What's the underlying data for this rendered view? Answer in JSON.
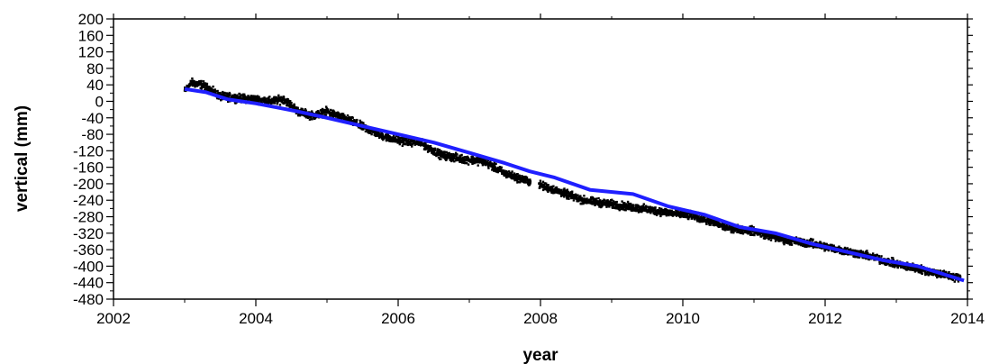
{
  "chart_data": {
    "type": "scatter",
    "title": "",
    "xlabel": "year",
    "ylabel": "vertical (mm)",
    "xlim": [
      2002,
      2014
    ],
    "ylim": [
      -480,
      200
    ],
    "x_ticks": [
      2002,
      2004,
      2006,
      2008,
      2010,
      2012,
      2014
    ],
    "y_ticks": [
      200,
      160,
      120,
      80,
      40,
      0,
      -40,
      -80,
      -120,
      -160,
      -200,
      -240,
      -280,
      -320,
      -360,
      -400,
      -440,
      -480
    ],
    "grid": false,
    "legend": "none",
    "series": [
      {
        "kind": "scatter",
        "color": "#000000",
        "marker": "square",
        "anchors": [
          [
            2003.0,
            25
          ],
          [
            2003.1,
            45
          ],
          [
            2003.25,
            40
          ],
          [
            2003.5,
            12
          ],
          [
            2003.75,
            8
          ],
          [
            2004.0,
            5
          ],
          [
            2004.2,
            0
          ],
          [
            2004.4,
            5
          ],
          [
            2004.6,
            -25
          ],
          [
            2004.8,
            -35
          ],
          [
            2005.0,
            -25
          ],
          [
            2005.3,
            -45
          ],
          [
            2005.6,
            -70
          ],
          [
            2005.8,
            -85
          ],
          [
            2006.0,
            -95
          ],
          [
            2006.3,
            -100
          ],
          [
            2006.6,
            -130
          ],
          [
            2006.9,
            -140
          ],
          [
            2007.2,
            -145
          ],
          [
            2007.5,
            -175
          ],
          [
            2007.85,
            -195
          ],
          [
            2008.2,
            -215
          ],
          [
            2008.6,
            -240
          ],
          [
            2009.0,
            -250
          ],
          [
            2009.4,
            -260
          ],
          [
            2009.8,
            -270
          ],
          [
            2010.2,
            -280
          ],
          [
            2010.6,
            -305
          ],
          [
            2011.0,
            -315
          ],
          [
            2011.4,
            -335
          ],
          [
            2011.8,
            -345
          ],
          [
            2012.2,
            -360
          ],
          [
            2012.6,
            -375
          ],
          [
            2013.0,
            -395
          ],
          [
            2013.4,
            -410
          ],
          [
            2013.9,
            -430
          ]
        ]
      },
      {
        "kind": "line",
        "color": "#1f1fff",
        "points": [
          [
            2003.0,
            30
          ],
          [
            2003.3,
            22
          ],
          [
            2003.6,
            5
          ],
          [
            2004.0,
            -5
          ],
          [
            2004.3,
            -15
          ],
          [
            2004.6,
            -25
          ],
          [
            2005.0,
            -40
          ],
          [
            2005.5,
            -60
          ],
          [
            2006.0,
            -80
          ],
          [
            2006.5,
            -100
          ],
          [
            2007.0,
            -125
          ],
          [
            2007.5,
            -150
          ],
          [
            2007.85,
            -170
          ],
          [
            2008.2,
            -185
          ],
          [
            2008.7,
            -215
          ],
          [
            2009.3,
            -225
          ],
          [
            2009.8,
            -255
          ],
          [
            2010.3,
            -275
          ],
          [
            2010.8,
            -305
          ],
          [
            2011.3,
            -320
          ],
          [
            2011.8,
            -345
          ],
          [
            2012.3,
            -365
          ],
          [
            2012.8,
            -385
          ],
          [
            2013.3,
            -400
          ],
          [
            2013.95,
            -435
          ]
        ]
      }
    ]
  }
}
